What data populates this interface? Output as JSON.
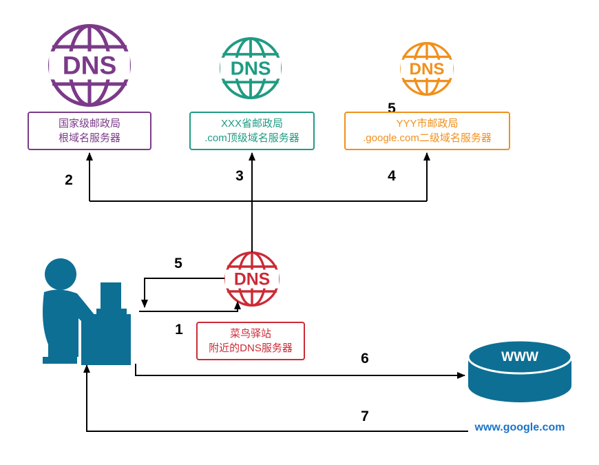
{
  "dns_label": "DNS",
  "colors": {
    "root": "#7b3a88",
    "tld": "#1f9b83",
    "second": "#f0901c",
    "local": "#cc2a36",
    "blue": "#0e6f94",
    "url": "#1a73c9",
    "line": "#000000"
  },
  "servers": {
    "root": {
      "line1": "国家级邮政局",
      "line2": "根域名服务器"
    },
    "tld": {
      "line1": "XXX省邮政局",
      "line2": ".com顶级域名服务器"
    },
    "second": {
      "line1": "YYY市邮政局",
      "line2": ".google.com二级域名服务器"
    },
    "local": {
      "line1": "菜鸟驿站",
      "line2": "附近的DNS服务器"
    }
  },
  "steps": {
    "s1": "1",
    "s2": "2",
    "s3": "3",
    "s4": "4",
    "s5_top": "5",
    "s5_left": "5",
    "s6": "6",
    "s7": "7"
  },
  "web": {
    "label": "WWW",
    "url": "www.google.com"
  }
}
